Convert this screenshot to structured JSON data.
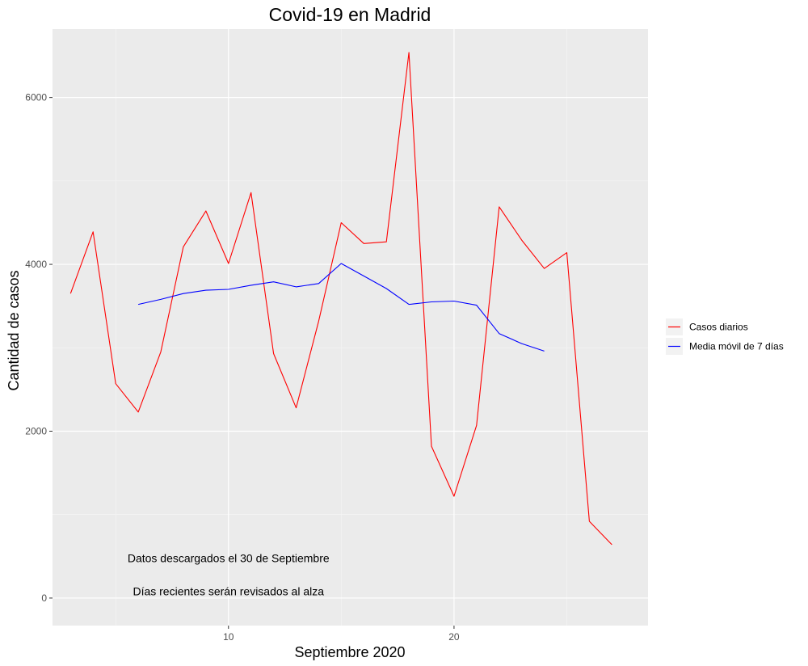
{
  "chart_data": {
    "type": "line",
    "title": "Covid-19 en Madrid",
    "xlabel": "Septiembre 2020",
    "ylabel": "Cantidad de casos",
    "xlim": [
      2.2,
      28.6
    ],
    "ylim": [
      -330,
      6820
    ],
    "x_ticks": [
      10,
      20
    ],
    "x_minor_ticks": [
      5,
      15,
      25
    ],
    "y_ticks": [
      0,
      2000,
      4000,
      6000
    ],
    "y_minor_ticks": [
      1000,
      3000,
      5000
    ],
    "grid": true,
    "legend_position": "right",
    "series": [
      {
        "name": "Casos diarios",
        "color": "#ff0000",
        "x": [
          3,
          4,
          5,
          6,
          7,
          8,
          9,
          10,
          11,
          12,
          13,
          14,
          15,
          16,
          17,
          18,
          19,
          20,
          21,
          22,
          23,
          24,
          25,
          26,
          27
        ],
        "values": [
          3650,
          4390,
          2570,
          2230,
          2950,
          4210,
          4640,
          4010,
          4860,
          2930,
          2280,
          3320,
          4500,
          4250,
          4270,
          6540,
          1820,
          1220,
          2070,
          4690,
          4290,
          3950,
          4140,
          920,
          640
        ]
      },
      {
        "name": "Media móvil de 7 días",
        "color": "#0000ff",
        "x": [
          6,
          7,
          8,
          9,
          10,
          11,
          12,
          13,
          14,
          15,
          16,
          17,
          18,
          19,
          20,
          21,
          22,
          23,
          24
        ],
        "values": [
          3520,
          3580,
          3650,
          3690,
          3700,
          3750,
          3790,
          3730,
          3770,
          4010,
          3860,
          3710,
          3520,
          3550,
          3560,
          3510,
          3170,
          3050,
          2960
        ]
      }
    ],
    "annotations": [
      {
        "text": "Datos descargados el 30 de Septiembre",
        "x": 10,
        "y": 480
      },
      {
        "text": "Días recientes serán revisados al alza",
        "x": 10,
        "y": 80
      }
    ]
  }
}
